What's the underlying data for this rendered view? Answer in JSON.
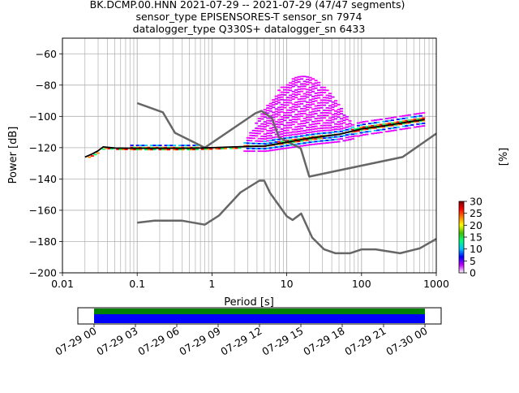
{
  "title": {
    "line1": "BK.DCMP.00.HNN   2021-07-29 -- 2021-07-29  (47/47 segments)",
    "line2": "sensor_type EPISENSORES-T sensor_sn 7974",
    "line3": "datalogger_type Q330S+ datalogger_sn 6433"
  },
  "chart_data": [
    {
      "type": "heatmap",
      "subtype": "probabilistic-power-spectral-density",
      "xlabel": "Period [s]",
      "ylabel": "Power [dB]",
      "xscale": "log",
      "xlim": [
        0.01,
        1000
      ],
      "ylim": [
        -200,
        -50
      ],
      "grid": true,
      "x_ticks": [
        "0.01",
        "0.1",
        "1",
        "10",
        "100",
        "1000"
      ],
      "y_ticks": [
        "−60",
        "−80",
        "−100",
        "−120",
        "−140",
        "−160",
        "−180",
        "−200"
      ],
      "colorbar": {
        "label": "[%]",
        "range": [
          0,
          30
        ],
        "ticks": [
          "0",
          "5",
          "10",
          "15",
          "20",
          "25",
          "30"
        ],
        "colors": [
          "#ffffff",
          "#c000ff",
          "#0000ff",
          "#00c0ff",
          "#00ff80",
          "#40c000",
          "#ffff00",
          "#ff8000",
          "#ff0000",
          "#800000"
        ]
      },
      "series": [
        {
          "name": "",
          "style": "noise-model-high",
          "color": "#666666",
          "points": [
            [
              0.1,
              -91.5
            ],
            [
              0.22,
              -97.4
            ],
            [
              0.32,
              -110.5
            ],
            [
              0.8,
              -120
            ],
            [
              3.8,
              -98
            ],
            [
              4.6,
              -96.5
            ],
            [
              6.3,
              -101
            ],
            [
              7.9,
              -113.5
            ],
            [
              15.4,
              -120.5
            ],
            [
              20,
              -138.5
            ],
            [
              354.8,
              -126
            ],
            [
              1000,
              -111
            ]
          ]
        },
        {
          "name": "",
          "style": "noise-model-low",
          "color": "#666666",
          "points": [
            [
              0.1,
              -168
            ],
            [
              0.17,
              -166.7
            ],
            [
              0.4,
              -166.7
            ],
            [
              0.8,
              -169.2
            ],
            [
              1.24,
              -163.4
            ],
            [
              2.4,
              -148.6
            ],
            [
              4.3,
              -141.1
            ],
            [
              5,
              -141.1
            ],
            [
              6,
              -149
            ],
            [
              10,
              -163.8
            ],
            [
              12,
              -166.2
            ],
            [
              15.6,
              -162.1
            ],
            [
              21.9,
              -177.5
            ],
            [
              31.6,
              -185
            ],
            [
              45,
              -187.5
            ],
            [
              70,
              -187.5
            ],
            [
              101,
              -185
            ],
            [
              154,
              -185
            ],
            [
              328,
              -187.5
            ],
            [
              600,
              -184.4
            ],
            [
              1000,
              -178.3
            ]
          ]
        },
        {
          "name": "",
          "style": "mode",
          "color": "#000000",
          "points": [
            [
              0.02,
              -126
            ],
            [
              0.025,
              -124
            ],
            [
              0.03,
              -122
            ],
            [
              0.035,
              -119.5
            ],
            [
              0.05,
              -120.2
            ],
            [
              0.1,
              -120.4
            ],
            [
              0.5,
              -120.4
            ],
            [
              1,
              -120
            ],
            [
              2,
              -119.5
            ],
            [
              5,
              -119
            ],
            [
              10,
              -116.5
            ],
            [
              20,
              -114
            ],
            [
              50,
              -111.5
            ],
            [
              100,
              -108
            ],
            [
              200,
              -106
            ],
            [
              500,
              -103
            ],
            [
              700,
              -102
            ]
          ]
        }
      ]
    },
    {
      "type": "timeline",
      "subtype": "data-coverage",
      "x_ticks": [
        "07-29 00",
        "07-29 03",
        "07-29 06",
        "07-29 09",
        "07-29 12",
        "07-29 15",
        "07-29 18",
        "07-29 21",
        "07-30 00"
      ],
      "bands": [
        {
          "start_hour": 0,
          "end_hour": 24,
          "color": "#008000"
        },
        {
          "start_hour": 0,
          "end_hour": 24,
          "color": "#0000ff"
        }
      ]
    }
  ]
}
